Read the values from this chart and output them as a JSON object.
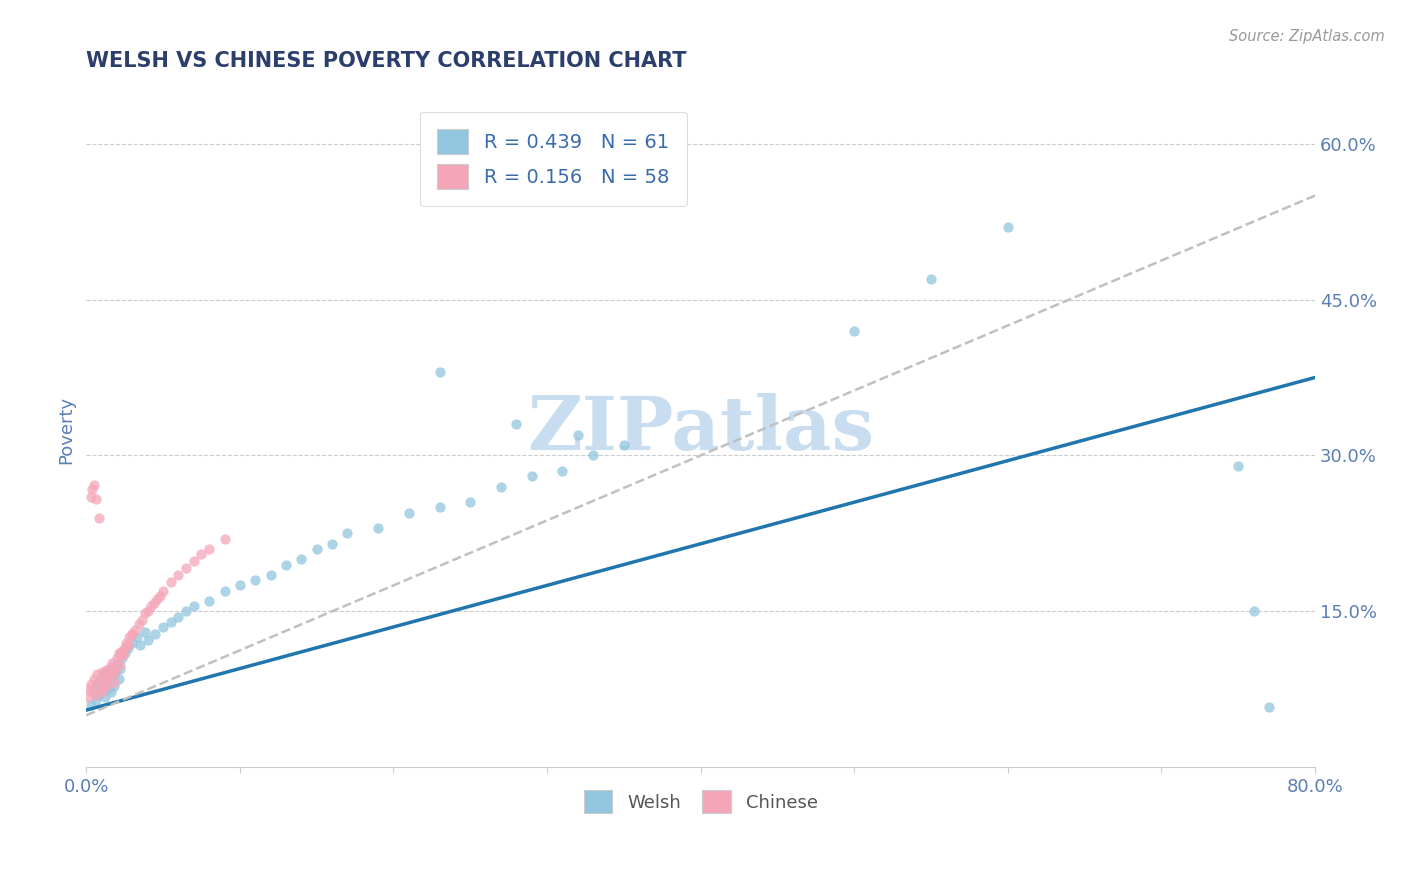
{
  "title": "WELSH VS CHINESE POVERTY CORRELATION CHART",
  "source": "Source: ZipAtlas.com",
  "ylabel": "Poverty",
  "xlim": [
    0.0,
    0.8
  ],
  "ylim": [
    0.0,
    0.65
  ],
  "xticks": [
    0.0,
    0.1,
    0.2,
    0.3,
    0.4,
    0.5,
    0.6,
    0.7,
    0.8
  ],
  "yticks_right": [
    0.15,
    0.3,
    0.45,
    0.6
  ],
  "ytick_labels_right": [
    "15.0%",
    "30.0%",
    "45.0%",
    "60.0%"
  ],
  "welsh_color": "#92c5de",
  "chinese_color": "#f4a6b8",
  "welsh_R": 0.439,
  "welsh_N": 61,
  "chinese_R": 0.156,
  "chinese_N": 58,
  "welsh_line_color": "#2176ae",
  "chinese_line_color": "#c0c0c0",
  "title_color": "#2c3e6b",
  "axis_label_color": "#5b7fb5",
  "legend_text_color": "#3a6bad",
  "watermark_color": "#c8ddf0",
  "background_color": "#ffffff",
  "welsh_x": [
    0.003,
    0.005,
    0.006,
    0.007,
    0.008,
    0.009,
    0.01,
    0.011,
    0.012,
    0.013,
    0.014,
    0.015,
    0.016,
    0.017,
    0.018,
    0.019,
    0.02,
    0.021,
    0.022,
    0.023,
    0.025,
    0.027,
    0.03,
    0.033,
    0.035,
    0.038,
    0.04,
    0.045,
    0.05,
    0.055,
    0.06,
    0.065,
    0.07,
    0.08,
    0.09,
    0.1,
    0.11,
    0.12,
    0.13,
    0.14,
    0.15,
    0.16,
    0.17,
    0.19,
    0.21,
    0.23,
    0.25,
    0.27,
    0.29,
    0.31,
    0.33,
    0.35,
    0.5,
    0.55,
    0.6,
    0.23,
    0.28,
    0.32,
    0.75,
    0.76,
    0.77
  ],
  "welsh_y": [
    0.06,
    0.075,
    0.065,
    0.08,
    0.07,
    0.085,
    0.078,
    0.09,
    0.068,
    0.082,
    0.075,
    0.095,
    0.072,
    0.088,
    0.078,
    0.092,
    0.1,
    0.085,
    0.095,
    0.105,
    0.11,
    0.115,
    0.12,
    0.125,
    0.118,
    0.13,
    0.122,
    0.128,
    0.135,
    0.14,
    0.145,
    0.15,
    0.155,
    0.16,
    0.17,
    0.175,
    0.18,
    0.185,
    0.195,
    0.2,
    0.21,
    0.215,
    0.225,
    0.23,
    0.245,
    0.25,
    0.255,
    0.27,
    0.28,
    0.285,
    0.3,
    0.31,
    0.42,
    0.47,
    0.52,
    0.38,
    0.33,
    0.32,
    0.29,
    0.15,
    0.058
  ],
  "chinese_x": [
    0.001,
    0.002,
    0.003,
    0.004,
    0.005,
    0.006,
    0.007,
    0.008,
    0.009,
    0.01,
    0.011,
    0.012,
    0.013,
    0.014,
    0.015,
    0.016,
    0.017,
    0.018,
    0.019,
    0.02,
    0.021,
    0.022,
    0.023,
    0.024,
    0.025,
    0.026,
    0.027,
    0.028,
    0.03,
    0.032,
    0.034,
    0.036,
    0.038,
    0.04,
    0.042,
    0.044,
    0.046,
    0.048,
    0.05,
    0.055,
    0.06,
    0.065,
    0.07,
    0.075,
    0.08,
    0.09,
    0.01,
    0.012,
    0.015,
    0.018,
    0.003,
    0.004,
    0.005,
    0.006,
    0.022,
    0.025,
    0.03,
    0.008
  ],
  "chinese_y": [
    0.068,
    0.075,
    0.08,
    0.072,
    0.085,
    0.07,
    0.09,
    0.078,
    0.083,
    0.092,
    0.076,
    0.086,
    0.094,
    0.079,
    0.088,
    0.096,
    0.1,
    0.082,
    0.092,
    0.105,
    0.11,
    0.098,
    0.112,
    0.108,
    0.115,
    0.12,
    0.118,
    0.125,
    0.128,
    0.132,
    0.138,
    0.142,
    0.148,
    0.15,
    0.155,
    0.158,
    0.162,
    0.165,
    0.17,
    0.178,
    0.185,
    0.192,
    0.198,
    0.205,
    0.21,
    0.22,
    0.072,
    0.085,
    0.09,
    0.095,
    0.26,
    0.268,
    0.272,
    0.258,
    0.108,
    0.115,
    0.128,
    0.24
  ],
  "welsh_line_x0": 0.0,
  "welsh_line_y0": 0.055,
  "welsh_line_x1": 0.8,
  "welsh_line_y1": 0.375,
  "chinese_line_x0": 0.0,
  "chinese_line_y0": 0.05,
  "chinese_line_x1": 0.8,
  "chinese_line_y1": 0.55
}
